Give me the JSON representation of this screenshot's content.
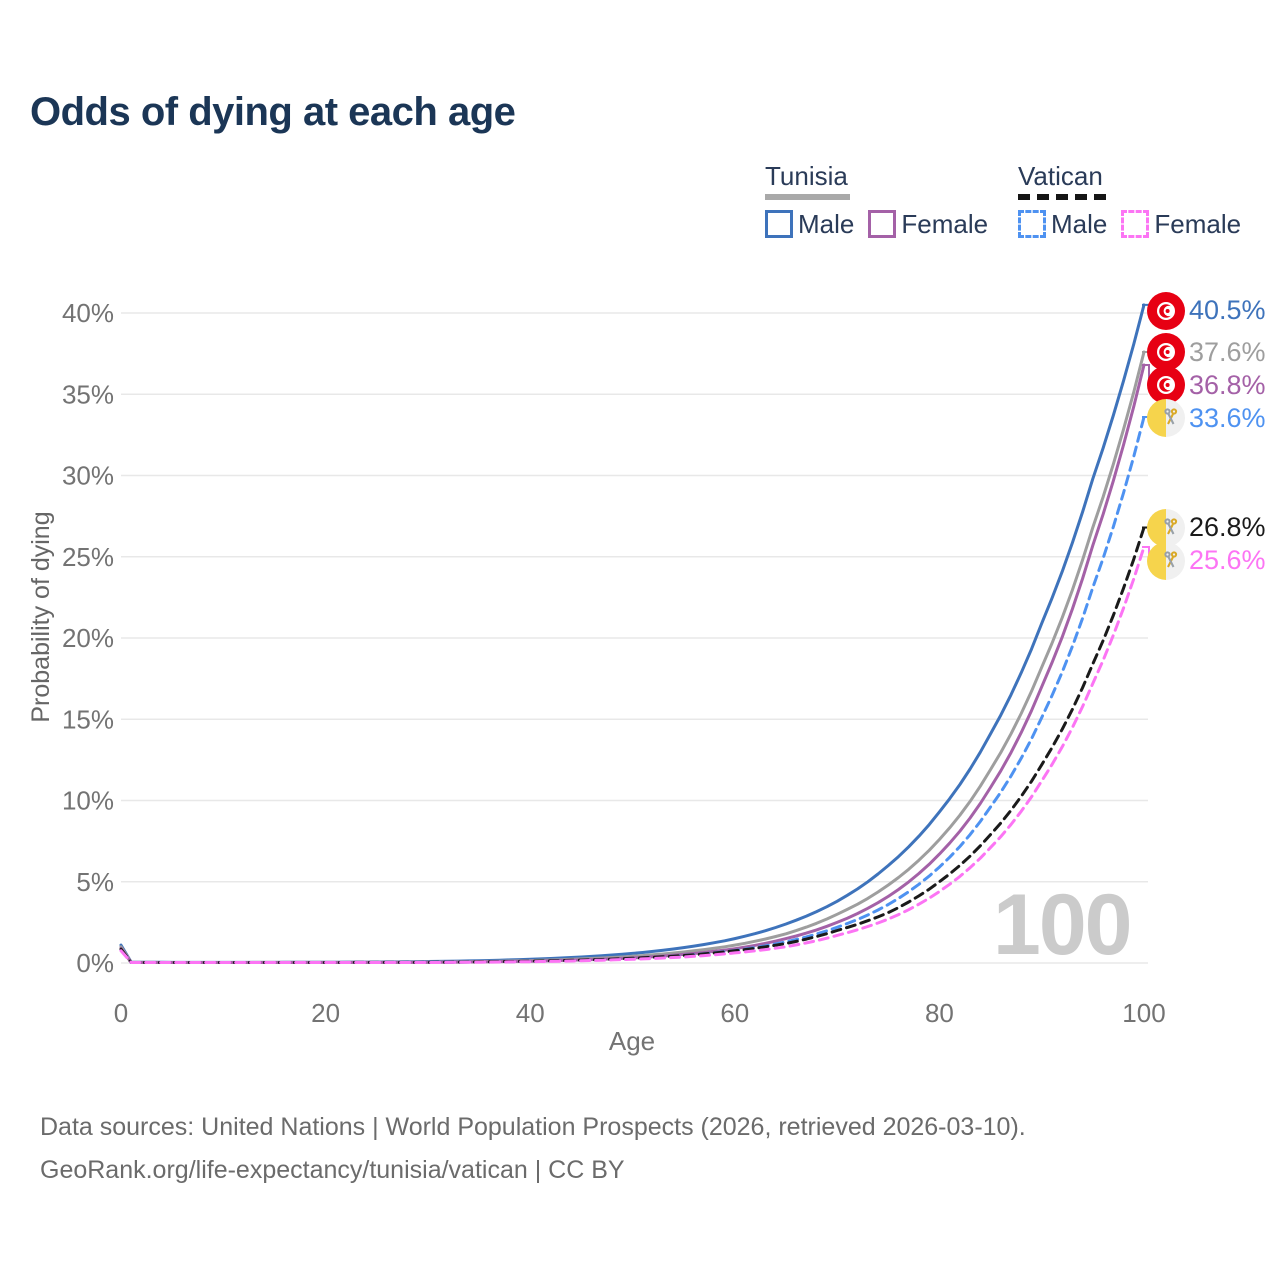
{
  "title": "Odds of dying at each age",
  "legend": {
    "groups": [
      {
        "label": "Tunisia",
        "line_style": "solid",
        "line_color": "#A9A9A9",
        "items": [
          {
            "label": "Male",
            "color": "#3E73BB",
            "dashed": false
          },
          {
            "label": "Female",
            "color": "#A461A7",
            "dashed": false
          }
        ]
      },
      {
        "label": "Vatican",
        "line_style": "dashed",
        "line_color": "#151515",
        "items": [
          {
            "label": "Male",
            "color": "#4E92F1",
            "dashed": true
          },
          {
            "label": "Female",
            "color": "#FC74F4",
            "dashed": true
          }
        ]
      }
    ]
  },
  "chart_data": {
    "type": "line",
    "title": "Odds of dying at each age",
    "xlabel": "Age",
    "ylabel": "Probability of dying",
    "xlim": [
      0,
      100
    ],
    "ylim": [
      0,
      40
    ],
    "x_ticks": [
      0,
      20,
      40,
      60,
      80,
      100
    ],
    "y_ticks": [
      "0%",
      "5%",
      "10%",
      "15%",
      "20%",
      "25%",
      "30%",
      "35%",
      "40%"
    ],
    "grid": "horizontal",
    "legend_position": "top-right",
    "age_indicator": "100",
    "x": [
      0,
      1,
      5,
      10,
      15,
      20,
      25,
      30,
      35,
      40,
      45,
      50,
      55,
      60,
      65,
      70,
      75,
      80,
      85,
      90,
      95,
      100
    ],
    "series": [
      {
        "name": "Tunisia Male",
        "country": "Tunisia",
        "sex": "Male",
        "color": "#3E73BB",
        "dashed": false,
        "end_value": 40.5,
        "end_label": "40.5%",
        "values": [
          1.1,
          0.05,
          0.04,
          0.04,
          0.04,
          0.05,
          0.06,
          0.09,
          0.14,
          0.23,
          0.37,
          0.59,
          0.95,
          1.5,
          2.4,
          3.8,
          6.0,
          9.3,
          14.1,
          20.9,
          29.8,
          40.5
        ]
      },
      {
        "name": "Tunisia (both sexes)",
        "country": "Tunisia",
        "sex": "All",
        "color": "#9E9E9E",
        "dashed": false,
        "end_value": 37.6,
        "end_label": "37.6%",
        "values": [
          1.0,
          0.04,
          0.03,
          0.03,
          0.04,
          0.04,
          0.04,
          0.06,
          0.09,
          0.15,
          0.25,
          0.41,
          0.68,
          1.1,
          1.8,
          3.0,
          4.8,
          7.6,
          11.9,
          18.2,
          26.8,
          37.6
        ]
      },
      {
        "name": "Tunisia Female",
        "country": "Tunisia",
        "sex": "Female",
        "color": "#A461A7",
        "dashed": false,
        "end_value": 36.8,
        "end_label": "36.8%",
        "values": [
          0.9,
          0.03,
          0.03,
          0.03,
          0.03,
          0.03,
          0.04,
          0.04,
          0.07,
          0.11,
          0.19,
          0.31,
          0.53,
          0.88,
          1.5,
          2.5,
          4.1,
          6.7,
          10.8,
          17.0,
          25.7,
          36.8
        ]
      },
      {
        "name": "Vatican Male",
        "country": "Vatican",
        "sex": "Male",
        "color": "#4E92F1",
        "dashed": true,
        "end_value": 33.6,
        "end_label": "33.6%",
        "values": [
          0.8,
          0.03,
          0.03,
          0.03,
          0.03,
          0.03,
          0.04,
          0.04,
          0.06,
          0.1,
          0.16,
          0.27,
          0.46,
          0.77,
          1.3,
          2.2,
          3.6,
          5.9,
          9.6,
          15.1,
          23.1,
          33.6
        ]
      },
      {
        "name": "Vatican (both sexes)",
        "country": "Vatican",
        "sex": "All",
        "color": "#1A1A1A",
        "dashed": true,
        "end_value": 26.8,
        "end_label": "26.8%",
        "values": [
          0.85,
          0.03,
          0.03,
          0.03,
          0.03,
          0.03,
          0.04,
          0.04,
          0.07,
          0.11,
          0.18,
          0.29,
          0.46,
          0.75,
          1.2,
          2.0,
          3.1,
          5.0,
          7.9,
          12.2,
          18.4,
          26.8
        ]
      },
      {
        "name": "Vatican Female",
        "country": "Vatican",
        "sex": "Female",
        "color": "#FC74F4",
        "dashed": true,
        "end_value": 25.6,
        "end_label": "25.6%",
        "values": [
          0.75,
          0.03,
          0.03,
          0.03,
          0.03,
          0.03,
          0.03,
          0.03,
          0.05,
          0.08,
          0.14,
          0.23,
          0.37,
          0.62,
          1.0,
          1.7,
          2.7,
          4.4,
          7.1,
          11.2,
          17.2,
          25.6
        ]
      }
    ]
  },
  "footer": {
    "line1": "Data sources: United Nations | World Population Prospects (2026, retrieved 2026-03-10).",
    "line2": "GeoRank.org/life-expectancy/tunisia/vatican | CC BY"
  }
}
